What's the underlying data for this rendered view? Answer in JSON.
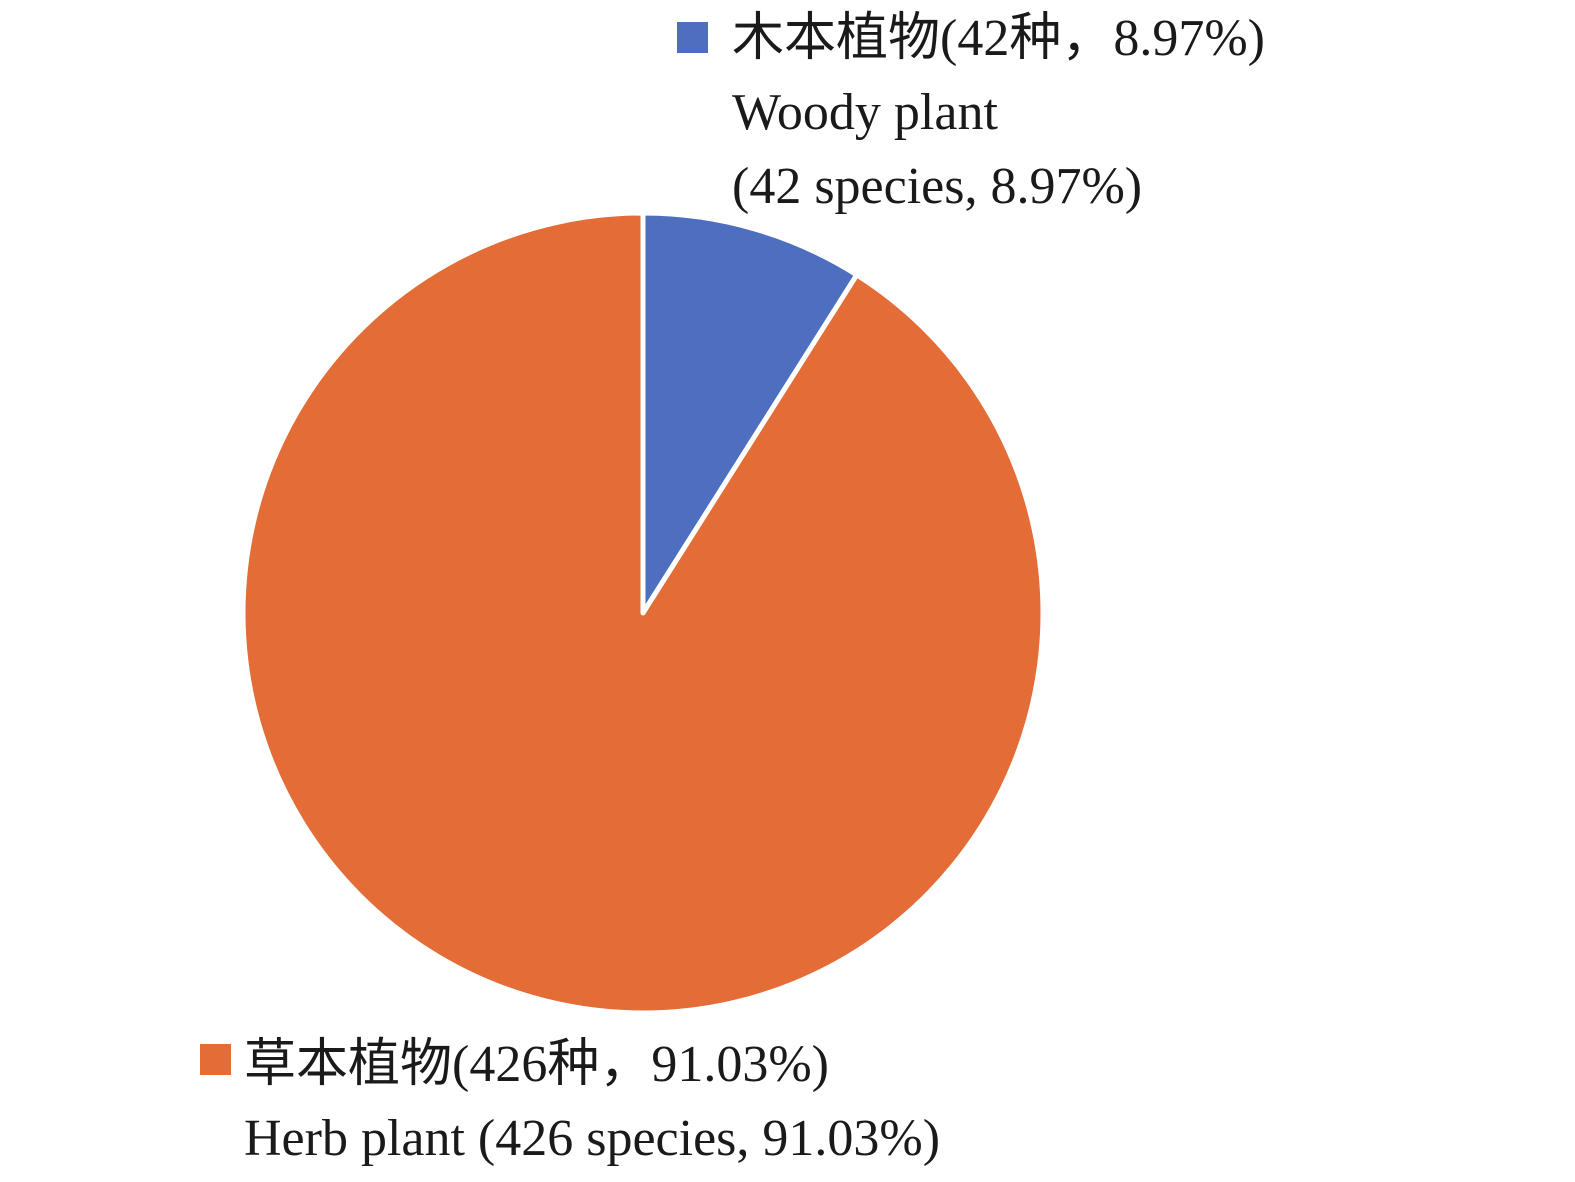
{
  "chart_data": {
    "type": "pie",
    "start_angle": "12 o'clock",
    "direction": "clockwise",
    "slices": [
      {
        "label_lines": [
          "木本植物(42种，8.97%)",
          "Woody plant",
          "(42 species, 8.97%)"
        ],
        "value": 42,
        "percent": 8.97,
        "color": "#4E6EBF"
      },
      {
        "label_lines": [
          "草本植物(426种，91.03%)",
          "Herb plant (426 species, 91.03%)"
        ],
        "value": 426,
        "percent": 91.03,
        "color": "#E36C37"
      }
    ],
    "slice_border_color": "#ffffff"
  }
}
